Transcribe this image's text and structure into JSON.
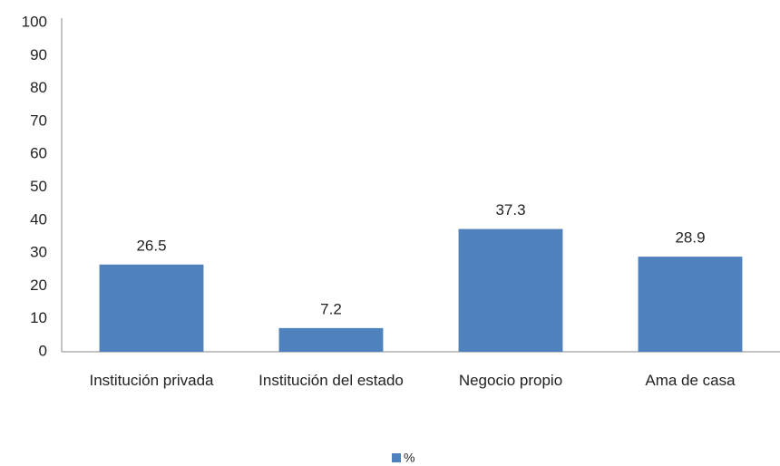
{
  "chart_data": {
    "type": "bar",
    "categories": [
      "Institución privada",
      "Institución del estado",
      "Negocio propio",
      "Ama de casa"
    ],
    "series": [
      {
        "name": "%",
        "color": "#4f81bd",
        "values": [
          26.5,
          7.2,
          37.3,
          28.9
        ]
      }
    ],
    "ylim": [
      0,
      100
    ],
    "yticks": [
      0,
      10,
      20,
      30,
      40,
      50,
      60,
      70,
      80,
      90,
      100
    ],
    "grid": false,
    "legend": "bottom"
  }
}
